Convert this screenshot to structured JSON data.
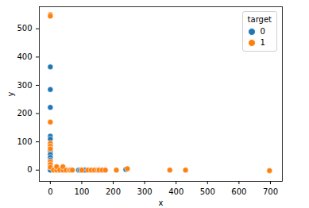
{
  "chart_data": {
    "type": "scatter",
    "x_label": "x",
    "y_label": "y",
    "legend_title": "target",
    "legend": "upper right",
    "xlim": [
      -35,
      738
    ],
    "ylim": [
      -40,
      578
    ],
    "xticks": [
      0,
      100,
      200,
      300,
      400,
      500,
      600,
      700
    ],
    "yticks": [
      0,
      100,
      200,
      300,
      400,
      500
    ],
    "grid": false,
    "series": [
      {
        "name": "0",
        "color": "#1f77b4",
        "marker": "circle",
        "x": [
          0,
          0,
          0,
          0,
          0,
          0,
          0,
          0,
          0,
          0,
          0,
          0,
          0,
          0,
          0,
          0,
          90,
          95,
          100,
          105,
          110,
          240
        ],
        "values": [
          365,
          285,
          222,
          120,
          110,
          90,
          80,
          70,
          65,
          55,
          45,
          35,
          25,
          15,
          5,
          0,
          0,
          0,
          0,
          0,
          0,
          2
        ]
      },
      {
        "name": "1",
        "color": "#ff7f0e",
        "marker": "circle",
        "x": [
          0,
          0,
          0,
          0,
          0,
          0,
          0,
          0,
          0,
          10,
          20,
          20,
          30,
          40,
          40,
          50,
          60,
          65,
          70,
          100,
          120,
          130,
          140,
          150,
          155,
          165,
          175,
          210,
          245,
          380,
          430,
          697
        ],
        "values": [
          550,
          545,
          170,
          95,
          85,
          75,
          30,
          20,
          10,
          0,
          0,
          12,
          0,
          0,
          12,
          0,
          0,
          0,
          0,
          0,
          0,
          0,
          0,
          0,
          0,
          0,
          0,
          0,
          5,
          0,
          0,
          -2
        ]
      }
    ]
  }
}
